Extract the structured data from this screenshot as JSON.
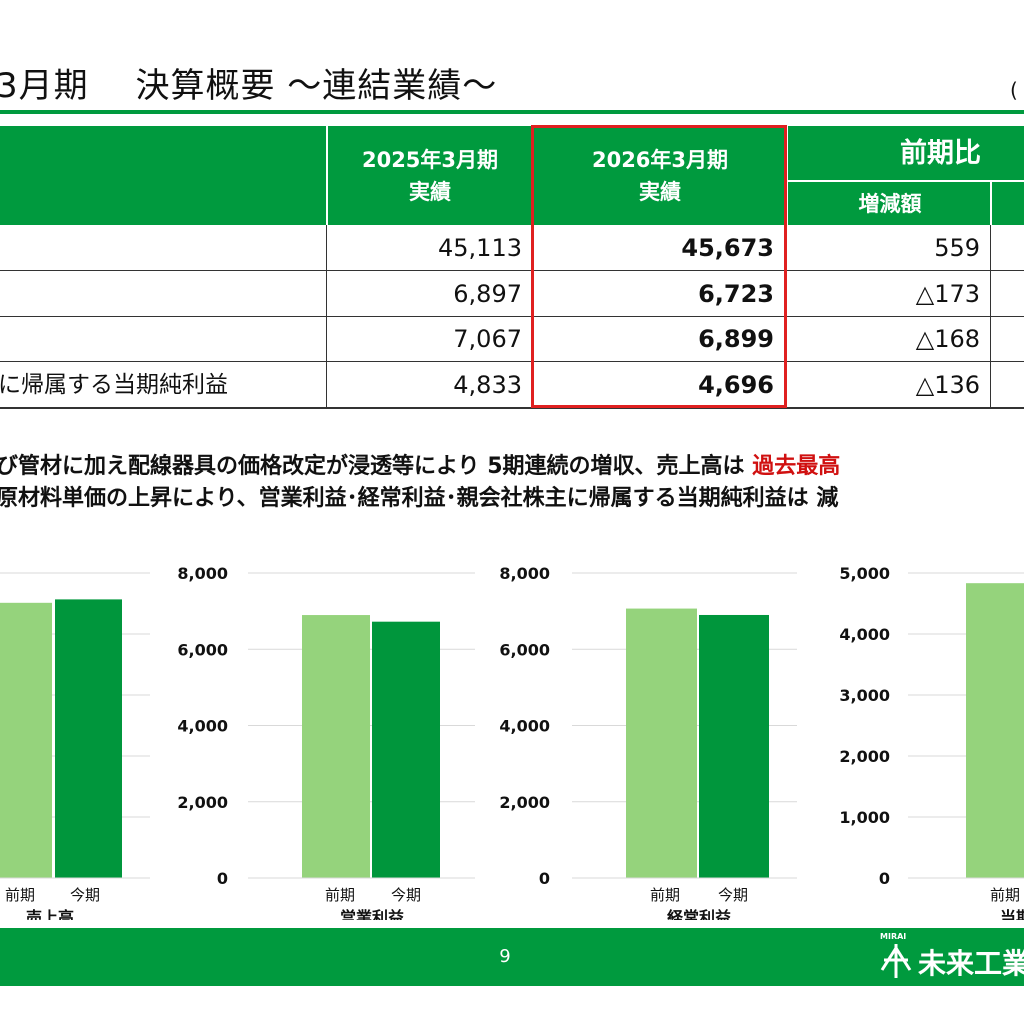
{
  "header": {
    "title": "3月期　 決算概要 ～連結業績～",
    "right_paren": "("
  },
  "table": {
    "col_prev_line1": "2025年3月期",
    "col_prev_line2": "実績",
    "col_curr_line1": "2026年3月期",
    "col_curr_line2": "実績",
    "col_compare": "前期比",
    "col_change": "増減額",
    "rows": [
      {
        "label": "",
        "prev": "45,113",
        "curr": "45,673",
        "change": "559"
      },
      {
        "label": "",
        "prev": "6,897",
        "curr": "6,723",
        "change": "△173"
      },
      {
        "label": "",
        "prev": "7,067",
        "curr": "6,899",
        "change": "△168"
      },
      {
        "label": "に帰属する当期純利益",
        "prev": "4,833",
        "curr": "4,696",
        "change": "△136"
      }
    ]
  },
  "comments": {
    "line1_a": "び管材に加え配線器具の価格改定が浸透等により 5期連続の増収、売上高は ",
    "line1_red": "過去最高",
    "line2": "原材料単価の上昇により、営業利益･経常利益･親会社株主に帰属する当期純利益は 減"
  },
  "chart_data": [
    {
      "type": "bar",
      "title": "売上高",
      "categories": [
        "前期",
        "今期"
      ],
      "values": [
        45113,
        45673
      ],
      "ylim": [
        0,
        50000
      ],
      "ticks": [],
      "colors": [
        "#95d37c",
        "#00963c"
      ]
    },
    {
      "type": "bar",
      "title": "営業利益",
      "categories": [
        "前期",
        "今期"
      ],
      "values": [
        6897,
        6723
      ],
      "ylim": [
        0,
        8000
      ],
      "ticks": [
        "0",
        "2,000",
        "4,000",
        "6,000",
        "8,000"
      ],
      "colors": [
        "#95d37c",
        "#00963c"
      ]
    },
    {
      "type": "bar",
      "title": "経常利益",
      "categories": [
        "前期",
        "今期"
      ],
      "values": [
        7067,
        6899
      ],
      "ylim": [
        0,
        8000
      ],
      "ticks": [
        "0",
        "2,000",
        "4,000",
        "6,000",
        "8,000"
      ],
      "colors": [
        "#95d37c",
        "#00963c"
      ]
    },
    {
      "type": "bar",
      "title": "当期",
      "categories": [
        "前期"
      ],
      "values": [
        4833
      ],
      "ylim": [
        0,
        5000
      ],
      "ticks": [
        "0",
        "1,000",
        "2,000",
        "3,000",
        "4,000",
        "5,000"
      ],
      "colors": [
        "#95d37c"
      ]
    }
  ],
  "footer": {
    "page": "9",
    "logo_sub": "MIRAI",
    "logo_text": "未来工業"
  },
  "colors": {
    "brand_green": "#009a3e",
    "highlight_red": "#e02020",
    "bar_prev": "#95d37c",
    "bar_curr": "#00963c"
  }
}
